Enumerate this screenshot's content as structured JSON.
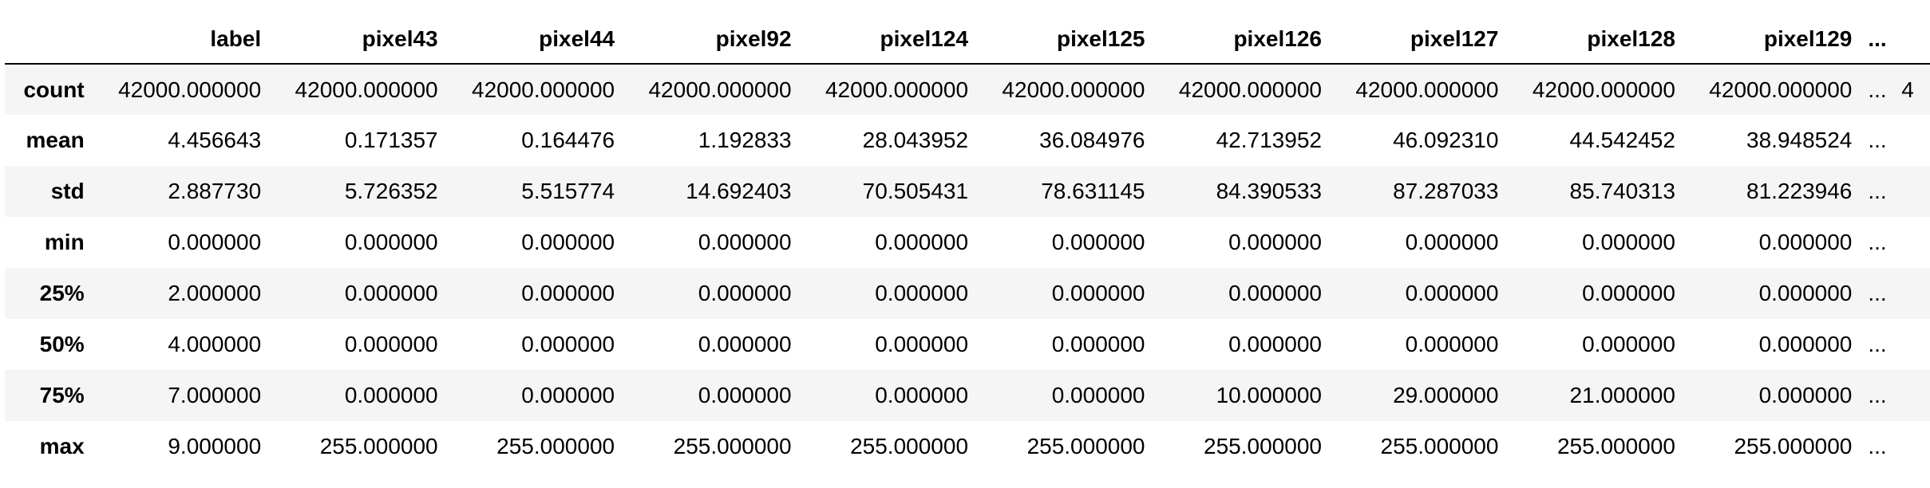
{
  "table": {
    "index_header": "",
    "columns": [
      "label",
      "pixel43",
      "pixel44",
      "pixel92",
      "pixel124",
      "pixel125",
      "pixel126",
      "pixel127",
      "pixel128",
      "pixel129"
    ],
    "ellipsis": "...",
    "rows": [
      {
        "index": "count",
        "values": [
          "42000.000000",
          "42000.000000",
          "42000.000000",
          "42000.000000",
          "42000.000000",
          "42000.000000",
          "42000.000000",
          "42000.000000",
          "42000.000000",
          "42000.000000"
        ],
        "cut": "4"
      },
      {
        "index": "mean",
        "values": [
          "4.456643",
          "0.171357",
          "0.164476",
          "1.192833",
          "28.043952",
          "36.084976",
          "42.713952",
          "46.092310",
          "44.542452",
          "38.948524"
        ],
        "cut": ""
      },
      {
        "index": "std",
        "values": [
          "2.887730",
          "5.726352",
          "5.515774",
          "14.692403",
          "70.505431",
          "78.631145",
          "84.390533",
          "87.287033",
          "85.740313",
          "81.223946"
        ],
        "cut": ""
      },
      {
        "index": "min",
        "values": [
          "0.000000",
          "0.000000",
          "0.000000",
          "0.000000",
          "0.000000",
          "0.000000",
          "0.000000",
          "0.000000",
          "0.000000",
          "0.000000"
        ],
        "cut": ""
      },
      {
        "index": "25%",
        "values": [
          "2.000000",
          "0.000000",
          "0.000000",
          "0.000000",
          "0.000000",
          "0.000000",
          "0.000000",
          "0.000000",
          "0.000000",
          "0.000000"
        ],
        "cut": ""
      },
      {
        "index": "50%",
        "values": [
          "4.000000",
          "0.000000",
          "0.000000",
          "0.000000",
          "0.000000",
          "0.000000",
          "0.000000",
          "0.000000",
          "0.000000",
          "0.000000"
        ],
        "cut": ""
      },
      {
        "index": "75%",
        "values": [
          "7.000000",
          "0.000000",
          "0.000000",
          "0.000000",
          "0.000000",
          "0.000000",
          "10.000000",
          "29.000000",
          "21.000000",
          "0.000000"
        ],
        "cut": ""
      },
      {
        "index": "max",
        "values": [
          "9.000000",
          "255.000000",
          "255.000000",
          "255.000000",
          "255.000000",
          "255.000000",
          "255.000000",
          "255.000000",
          "255.000000",
          "255.000000"
        ],
        "cut": ""
      }
    ]
  }
}
